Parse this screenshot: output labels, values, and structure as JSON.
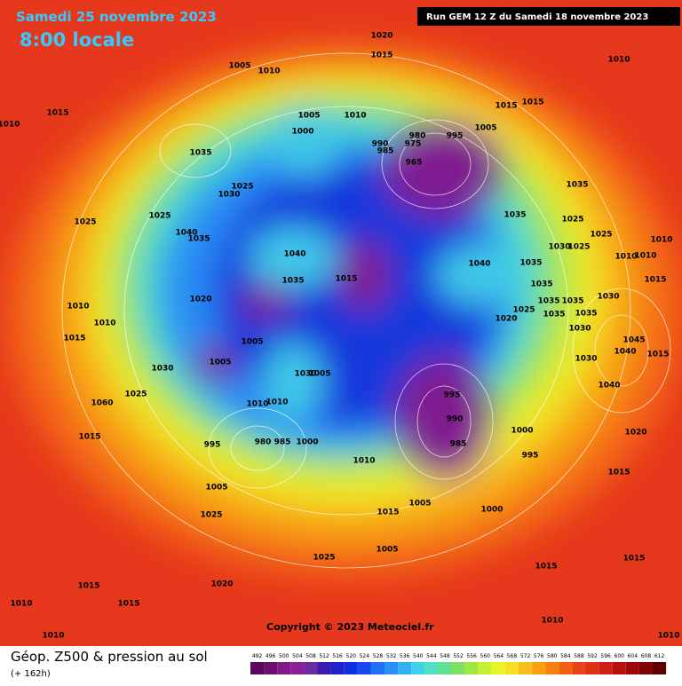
{
  "header": {
    "date": "Samedi 25 novembre 2023",
    "time": "8:00 locale",
    "run": "Run GEM 12 Z du Samedi 18 novembre 2023"
  },
  "copyright": "Copyright © 2023 Meteociel.fr",
  "footer": {
    "title": "Géop. Z500 & pression au sol",
    "lead": "(+ 162h)"
  },
  "isobar_labels": [
    1010,
    1015,
    1005,
    1010,
    1020,
    1015,
    1010,
    1035,
    1005,
    1000,
    1010,
    990,
    985,
    975,
    980,
    965,
    995,
    1005,
    1015,
    1015,
    1025,
    1030,
    1035,
    1025,
    1040,
    1035,
    1025,
    1035,
    1025,
    1030,
    1025,
    1025,
    1010,
    1010,
    1040,
    1040,
    1035,
    1010,
    1015,
    1035,
    1035,
    1015,
    1030,
    1020,
    1035,
    1035,
    1025,
    1010,
    1010,
    1020,
    1035,
    1035,
    1030,
    1015,
    1005,
    1005,
    1045,
    1040,
    1015,
    1030,
    1030,
    1030,
    1005,
    1040,
    995,
    1025,
    1060,
    1010,
    1010,
    990,
    1000,
    1020,
    995,
    980,
    985,
    1000,
    985,
    1015,
    995,
    1010,
    1015,
    1005,
    1005,
    1000,
    1015,
    1025,
    1005,
    1025,
    1015,
    1015,
    1020,
    1015,
    1015,
    1010,
    1010,
    1010,
    1010
  ],
  "colorbar": {
    "ticks": [
      492,
      496,
      500,
      504,
      508,
      512,
      516,
      520,
      524,
      528,
      532,
      536,
      540,
      544,
      548,
      552,
      556,
      560,
      564,
      568,
      572,
      576,
      580,
      584,
      588,
      592,
      596,
      600,
      604,
      608,
      612
    ],
    "colors": [
      "#5a0a5a",
      "#6e1070",
      "#821a86",
      "#8c2096",
      "#6a2aa0",
      "#3a1cb0",
      "#2024c8",
      "#1030e0",
      "#1848f0",
      "#2070f8",
      "#2890f8",
      "#30b0f0",
      "#40d0e8",
      "#50e0c0",
      "#60e090",
      "#80e060",
      "#a0e840",
      "#c8f030",
      "#e8f428",
      "#f8e020",
      "#f8c018",
      "#f8a010",
      "#f88010",
      "#f06010",
      "#e84418",
      "#e03018",
      "#d02018",
      "#b81010",
      "#a00808",
      "#800404",
      "#600000"
    ]
  }
}
